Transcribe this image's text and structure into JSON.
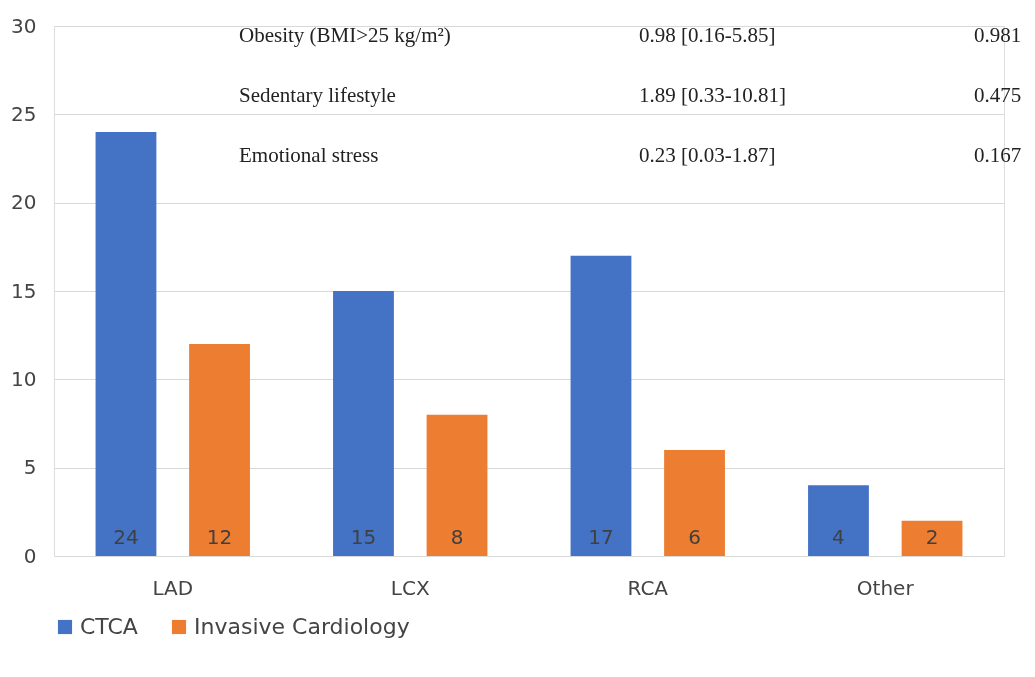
{
  "chart_data": {
    "type": "bar",
    "categories": [
      "LAD",
      "LCX",
      "RCA",
      "Other"
    ],
    "series": [
      {
        "name": "CTCA",
        "color": "#4472c4",
        "values": [
          24,
          15,
          17,
          4
        ]
      },
      {
        "name": "Invasive Cardiology",
        "color": "#ed7d31",
        "values": [
          12,
          8,
          6,
          2
        ]
      }
    ],
    "ylim": [
      0,
      30
    ],
    "yticks": [
      0,
      5,
      10,
      15,
      20,
      25,
      30
    ],
    "grid": "y",
    "legend": "bottom",
    "data_labels": true,
    "annotations": [
      "Obesity (BMI>25 kg/m²)",
      "0.98 [0.16-5.85]",
      "0.981",
      "Sedentary lifestyle",
      "1.89 [0.33-10.81]",
      "0.475",
      "Emotional stress",
      "0.23 [0.03-1.87]",
      "0.167"
    ]
  }
}
